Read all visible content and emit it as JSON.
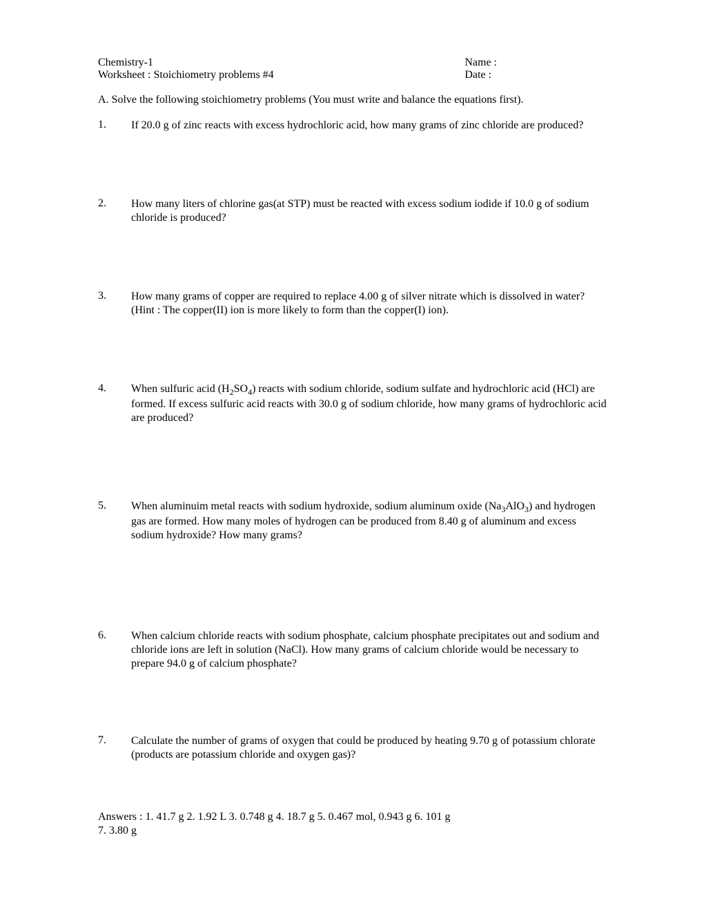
{
  "header": {
    "course": "Chemistry-1",
    "worksheet": "Worksheet : Stoichiometry problems #4",
    "name_label": "Name :",
    "date_label": "Date :"
  },
  "section_instruction": "A. Solve the following stoichiometry problems (You must write and balance the equations first).",
  "problems": [
    {
      "num": "1.",
      "text": "If 20.0 g of zinc reacts with excess hydrochloric acid, how many grams of zinc chloride are produced?"
    },
    {
      "num": "2.",
      "text": "How many liters of chlorine gas(at STP) must be reacted with excess sodium iodide if 10.0 g of sodium  chloride is produced?"
    },
    {
      "num": "3.",
      "text": "How many grams of copper are required to replace 4.00 g of silver nitrate which is dissolved in water? (Hint : The copper(II) ion is more likely to form than the copper(I) ion)."
    },
    {
      "num": "4.",
      "text_html": "When sulfuric acid (H<sub>2</sub>SO<sub>4</sub>) reacts with sodium chloride, sodium sulfate and hydrochloric acid (HCl) are formed. If excess sulfuric acid reacts with 30.0 g of sodium chloride, how many grams of hydrochloric acid are produced?"
    },
    {
      "num": "5.",
      "text_html": "When aluminuim metal reacts with sodium hydroxide, sodium aluminum oxide (Na<sub>3</sub>AlO<sub>3</sub>) and hydrogen gas are formed. How many moles of hydrogen can be produced from 8.40 g of aluminum and excess sodium hydroxide?  How many grams?"
    },
    {
      "num": "6.",
      "text": "When calcium chloride reacts with sodium phosphate, calcium phosphate precipitates out and sodium and chloride ions are left in solution (NaCl). How many grams of calcium chloride would be necessary to prepare 94.0 g of calcium phosphate?"
    },
    {
      "num": "7.",
      "text": "Calculate the number of grams of oxygen that could be produced by heating 9.70 g of potassium chlorate (products are potassium chloride and oxygen gas)?"
    }
  ],
  "answers_line1": "Answers : 1.   41.7 g      2.   1.92 L     3.   0.748 g       4.   18.7 g     5.   0.467 mol,  0.943 g        6.  101 g",
  "answers_line2": "7. 3.80 g",
  "spacing": {
    "p1_mb": 94,
    "p2_mb": 94,
    "p3_mb": 94,
    "p4_mb": 108,
    "p5_mb": 126,
    "p6_mb": 92,
    "p7_mb": 70
  }
}
